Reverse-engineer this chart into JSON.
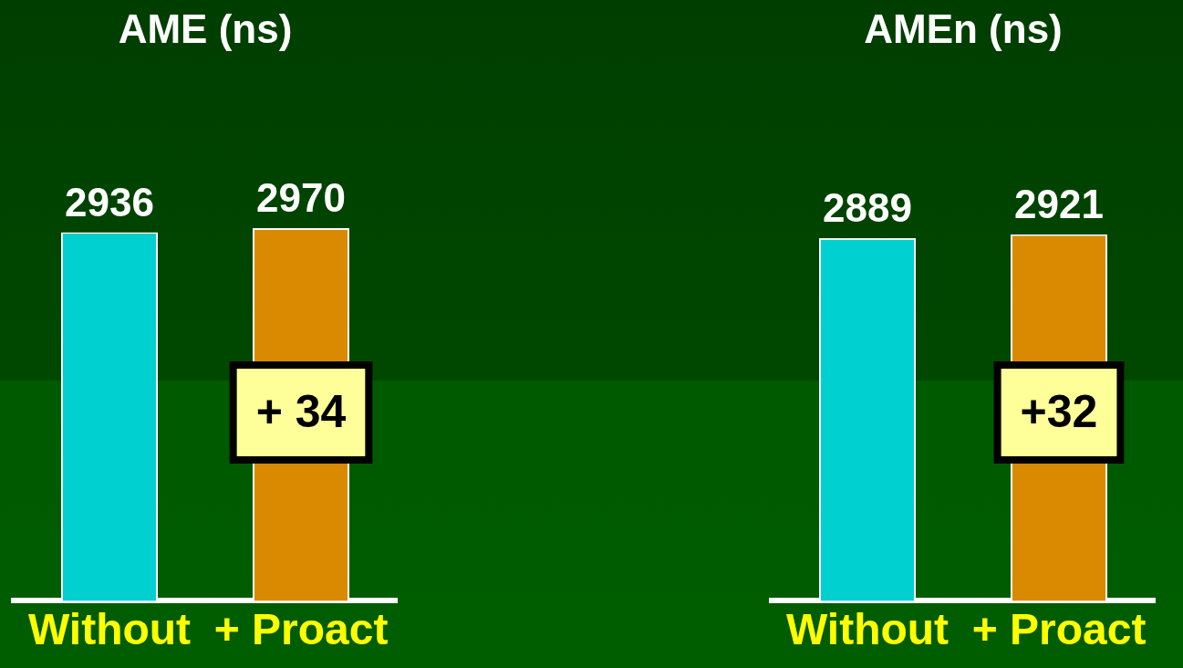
{
  "chart_data": [
    {
      "type": "bar",
      "title": "AME (ns)",
      "categories": [
        "Without",
        "+ Proact"
      ],
      "values": [
        2936,
        2970
      ],
      "colors": [
        "#00d0d0",
        "#d98a00"
      ],
      "data_labels": true,
      "grid": false,
      "legend": false,
      "annotations": [
        "+ 34"
      ]
    },
    {
      "type": "bar",
      "title": "AMEn (ns)",
      "categories": [
        "Without",
        "+ Proact"
      ],
      "values": [
        2889,
        2921
      ],
      "colors": [
        "#00d0d0",
        "#d98a00"
      ],
      "data_labels": true,
      "grid": false,
      "legend": false,
      "annotations": [
        "+32"
      ]
    }
  ]
}
